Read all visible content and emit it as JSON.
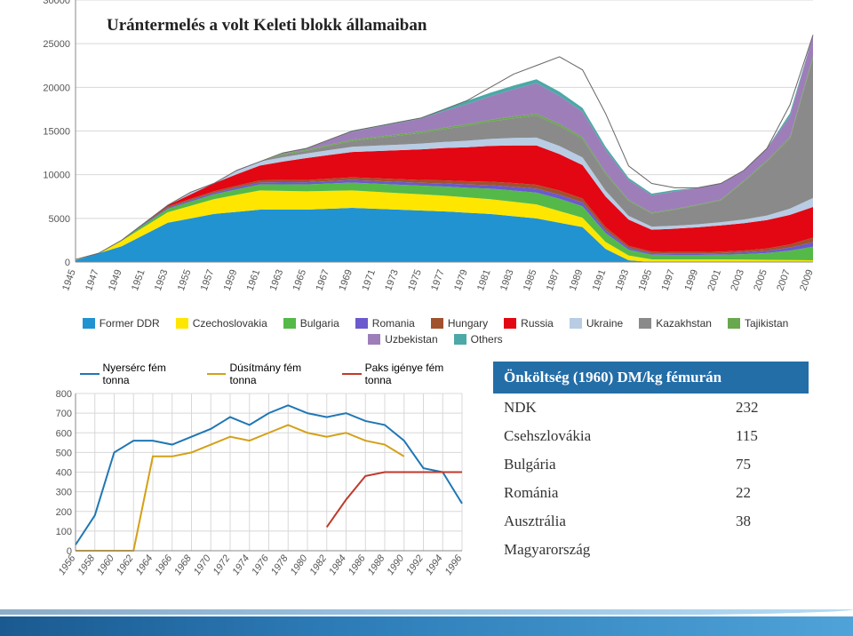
{
  "title": "Urántermelés a volt Keleti blokk államaiban",
  "top_chart": {
    "type": "area-stacked",
    "xlim": [
      1945,
      2009
    ],
    "xtick_step": 2,
    "ylim": [
      0,
      30000
    ],
    "ytick_step": 5000,
    "background_color": "#ffffff",
    "grid_color": "#d8d8d8",
    "axis_color": "#888888",
    "label_fontsize": 11,
    "legend": [
      {
        "label": "Former DDR",
        "color": "#2193d1"
      },
      {
        "label": "Czechoslovakia",
        "color": "#ffe600"
      },
      {
        "label": "Bulgaria",
        "color": "#54b948"
      },
      {
        "label": "Romania",
        "color": "#6a5acd"
      },
      {
        "label": "Hungary",
        "color": "#a0522d"
      },
      {
        "label": "Russia",
        "color": "#e30613"
      },
      {
        "label": "Ukraine",
        "color": "#b8cce4"
      },
      {
        "label": "Kazakhstan",
        "color": "#8a8a8a"
      },
      {
        "label": "Tajikistan",
        "color": "#6aa84f"
      },
      {
        "label": "Uzbekistan",
        "color": "#9e7eb9"
      },
      {
        "label": "Others",
        "color": "#4da8a8"
      }
    ],
    "series_totals": {
      "1945": 300,
      "1947": 1000,
      "1949": 2500,
      "1951": 4500,
      "1953": 6500,
      "1955": 8000,
      "1957": 9000,
      "1959": 10500,
      "1961": 11500,
      "1963": 12500,
      "1965": 13000,
      "1967": 14000,
      "1969": 15000,
      "1971": 15500,
      "1973": 16000,
      "1975": 16500,
      "1977": 17500,
      "1979": 18500,
      "1981": 20000,
      "1983": 21500,
      "1985": 22500,
      "1987": 23500,
      "1989": 22000,
      "1991": 17000,
      "1993": 11000,
      "1995": 9000,
      "1997": 8500,
      "1999": 8500,
      "2001": 9000,
      "2003": 10500,
      "2005": 13000,
      "2007": 18000,
      "2009": 26000
    },
    "series_ddr": {
      "1945": 200,
      "1949": 1800,
      "1953": 4500,
      "1957": 5500,
      "1961": 6000,
      "1965": 6000,
      "1969": 6200,
      "1973": 6000,
      "1977": 5800,
      "1981": 5500,
      "1985": 5000,
      "1989": 4000,
      "1991": 1500,
      "1993": 200,
      "1995": 0,
      "2009": 0
    },
    "series_cze": {
      "1945": 50,
      "1953": 1200,
      "1961": 2200,
      "1969": 2000,
      "1977": 1800,
      "1985": 1600,
      "1991": 800,
      "1995": 300,
      "2001": 300,
      "2009": 200
    },
    "series_russia": {
      "1955": 500,
      "1965": 2500,
      "1975": 3500,
      "1985": 4500,
      "1991": 3500,
      "1995": 2500,
      "2001": 3000,
      "2009": 3500
    },
    "series_uzbek": {
      "1965": 500,
      "1975": 1500,
      "1985": 3500,
      "1995": 2000,
      "2001": 2000,
      "2009": 2500
    },
    "series_kazakh": {
      "1965": 300,
      "1975": 1200,
      "1985": 2500,
      "1995": 1500,
      "2001": 2500,
      "2007": 8000,
      "2009": 16000
    }
  },
  "line_chart": {
    "type": "line",
    "legend": [
      {
        "label": "Nyersérc fém tonna",
        "color": "#1f77b4"
      },
      {
        "label": "Dúsítmány fém tonna",
        "color": "#d4a017"
      },
      {
        "label": "Paks igénye fém tonna",
        "color": "#c0392b"
      }
    ],
    "xlim": [
      1956,
      1996
    ],
    "xtick_step": 2,
    "ylim": [
      0,
      800
    ],
    "ytick_step": 100,
    "label_fontsize": 11,
    "grid_color": "#d8d8d8",
    "line_width": 2,
    "series": {
      "Nyersérc fém tonna": {
        "1956": 30,
        "1958": 180,
        "1960": 500,
        "1962": 560,
        "1964": 560,
        "1966": 540,
        "1968": 580,
        "1970": 620,
        "1972": 680,
        "1974": 640,
        "1976": 700,
        "1978": 740,
        "1980": 700,
        "1982": 680,
        "1984": 700,
        "1986": 660,
        "1988": 640,
        "1990": 560,
        "1992": 420,
        "1994": 400,
        "1996": 240
      },
      "Dúsítmány fém tonna": {
        "1956": 0,
        "1962": 0,
        "1964": 480,
        "1966": 480,
        "1968": 500,
        "1970": 540,
        "1972": 580,
        "1974": 560,
        "1976": 600,
        "1978": 640,
        "1980": 600,
        "1982": 580,
        "1984": 600,
        "1986": 560,
        "1988": 540,
        "1990": 480
      },
      "Paks igénye fém tonna": {
        "1982": 120,
        "1984": 260,
        "1986": 380,
        "1988": 400,
        "1990": 400,
        "1992": 400,
        "1994": 400,
        "1996": 400
      }
    }
  },
  "cost_table": {
    "header": "Önköltség (1960) DM/kg fémurán",
    "rows": [
      {
        "k": "NDK",
        "v": "232"
      },
      {
        "k": "Csehszlovákia",
        "v": "115"
      },
      {
        "k": "Bulgária",
        "v": "75"
      },
      {
        "k": "Románia",
        "v": "22"
      },
      {
        "k": "Ausztrália",
        "v": "38"
      },
      {
        "k": "Magyarország",
        "v": ""
      }
    ]
  }
}
